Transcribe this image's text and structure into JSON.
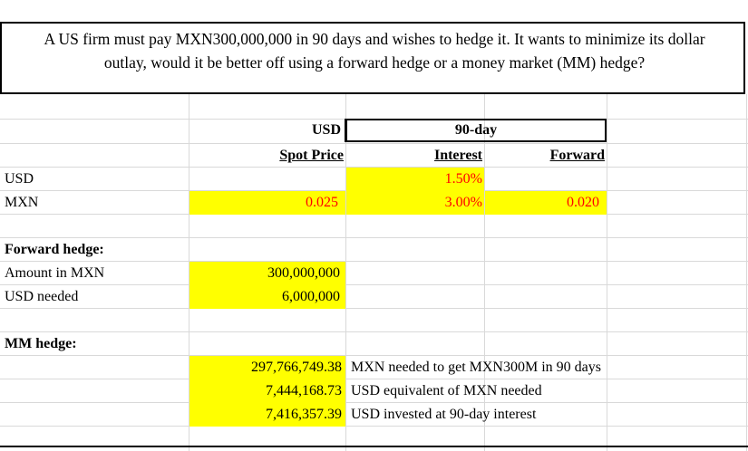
{
  "question": {
    "line1": "A US firm must pay MXN300,000,000 in 90 days and wishes to hedge it. It wants to minimize its dollar",
    "line2": "outlay, would it be better off using a forward hedge or a money market (MM) hedge?"
  },
  "headers": {
    "usd": "USD",
    "ninety_day": "90-day",
    "spot_price": "Spot Price",
    "interest": "Interest",
    "forward": "Forward"
  },
  "rates": [
    {
      "label": "USD",
      "spot": "",
      "interest": "1.50%",
      "forward": ""
    },
    {
      "label": "MXN",
      "spot": "0.025",
      "interest": "3.00%",
      "forward": "0.020"
    }
  ],
  "forward_hedge": {
    "title": "Forward hedge:",
    "amount_label": "Amount in MXN",
    "amount_value": "300,000,000",
    "usd_label": "USD needed",
    "usd_value": "6,000,000"
  },
  "mm_hedge": {
    "title": "MM hedge:",
    "rows": [
      {
        "value": "297,766,749.38",
        "note": "MXN needed to get MXN300M in 90 days"
      },
      {
        "value": "7,444,168.73",
        "note": "USD equivalent of MXN needed"
      },
      {
        "value": "7,416,357.39",
        "note": "USD invested at 90-day interest"
      }
    ]
  },
  "colors": {
    "highlight": "#ffff00",
    "input_text": "#ff0000"
  }
}
